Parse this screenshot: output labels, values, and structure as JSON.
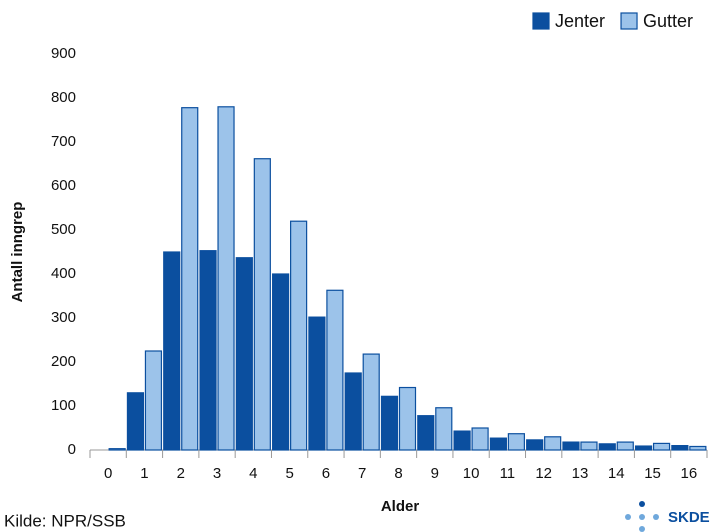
{
  "chart_data": {
    "type": "bar",
    "y_label": "Antall inngrep",
    "x_label": "Alder",
    "source": "Kilde: NPR/SSB",
    "logo": "SKDE",
    "categories": [
      "0",
      "1",
      "2",
      "3",
      "4",
      "5",
      "6",
      "7",
      "8",
      "9",
      "10",
      "11",
      "12",
      "13",
      "14",
      "15",
      "16"
    ],
    "series": [
      {
        "name": "Jenter",
        "color": "#0b4f9f",
        "values": [
          0,
          130,
          450,
          453,
          437,
          400,
          302,
          175,
          122,
          78,
          43,
          27,
          23,
          18,
          14,
          9,
          10
        ]
      },
      {
        "name": "Gutter",
        "color": "#9cc3ea",
        "values": [
          3,
          225,
          778,
          780,
          662,
          520,
          363,
          218,
          142,
          96,
          50,
          37,
          30,
          18,
          18,
          15,
          8
        ]
      }
    ],
    "ylim": [
      0,
      900
    ],
    "yticks": [
      0,
      100,
      200,
      300,
      400,
      500,
      600,
      700,
      800,
      900
    ],
    "grid": false,
    "legend": "top-right"
  }
}
